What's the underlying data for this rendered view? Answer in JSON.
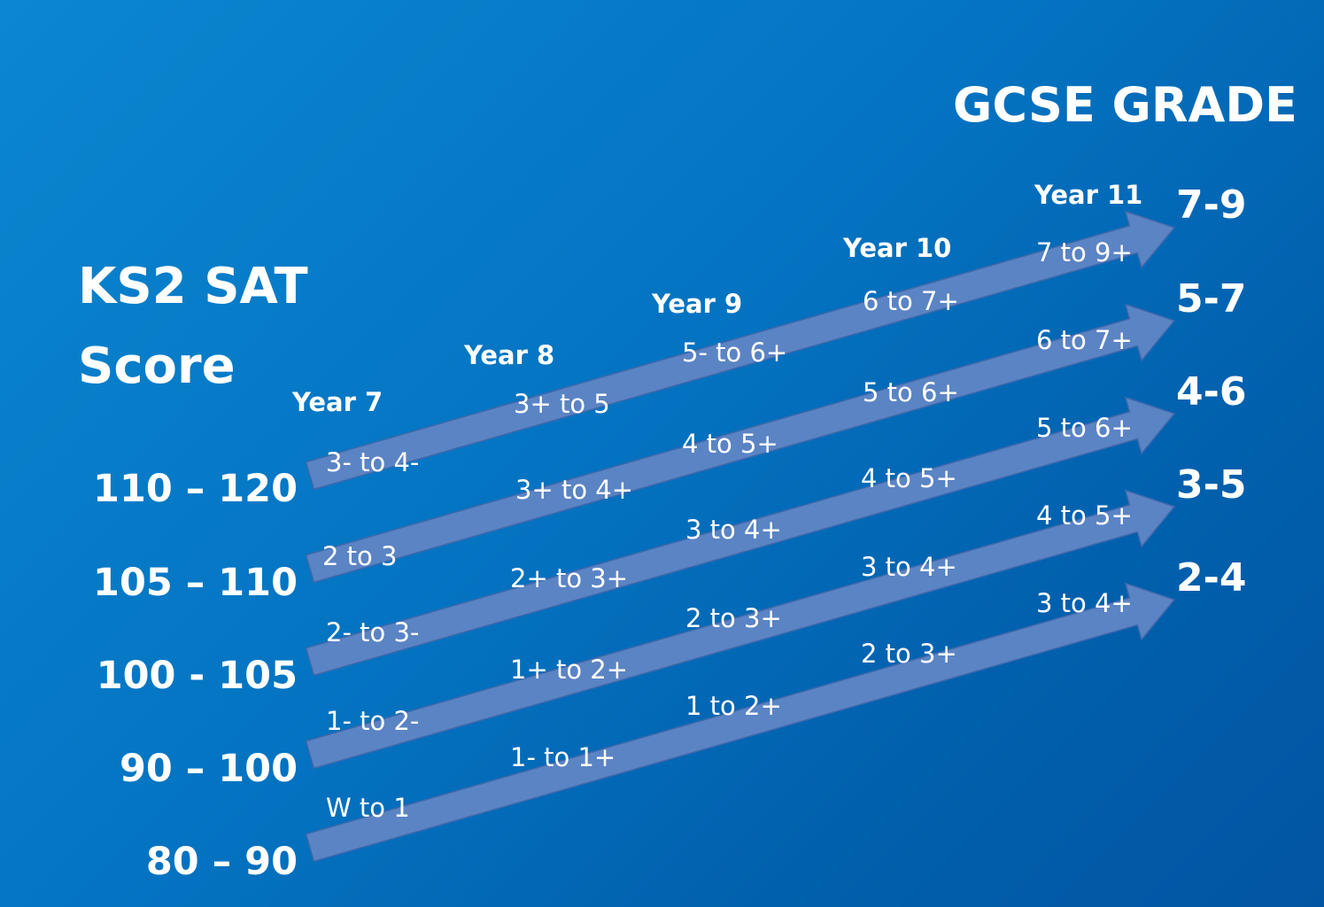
{
  "left_title": {
    "line1": "KS2 SAT",
    "line2": "Score"
  },
  "right_title": "GCSE GRADE",
  "sat_scores": [
    "110 – 120",
    "105 – 110",
    "100 - 105",
    "90 – 100",
    "80 – 90"
  ],
  "years": [
    "Year 7",
    "Year 8",
    "Year 9",
    "Year 10",
    "Year 11"
  ],
  "gcse_grades": [
    "7-9",
    "5-7",
    "4-6",
    "3-5",
    "2-4"
  ],
  "pathways": [
    {
      "year7": "3- to 4-",
      "year8": "3+ to 5",
      "year9": "5- to 6+",
      "year10": "6 to 7+",
      "year11": "7 to 9+"
    },
    {
      "year7": "2 to 3",
      "year8": "3+ to 4+",
      "year9": "4 to 5+",
      "year10": "5 to 6+",
      "year11": "6 to 7+"
    },
    {
      "year7": "2- to 3-",
      "year8": "2+ to 3+",
      "year9": "3 to 4+",
      "year10": "4 to 5+",
      "year11": "5 to 6+"
    },
    {
      "year7": "1- to 2-",
      "year8": "1+ to 2+",
      "year9": "2 to 3+",
      "year10": "3 to 4+",
      "year11": "4 to 5+"
    },
    {
      "year7": "W to 1",
      "year8": "1- to 1+",
      "year9": "1 to 2+",
      "year10": "2 to 3+",
      "year11": "3 to 4+"
    }
  ],
  "colors": {
    "arrow_fill": "#5b84c4",
    "arrow_stroke": "#3f68ab",
    "text": "#ffffff"
  }
}
